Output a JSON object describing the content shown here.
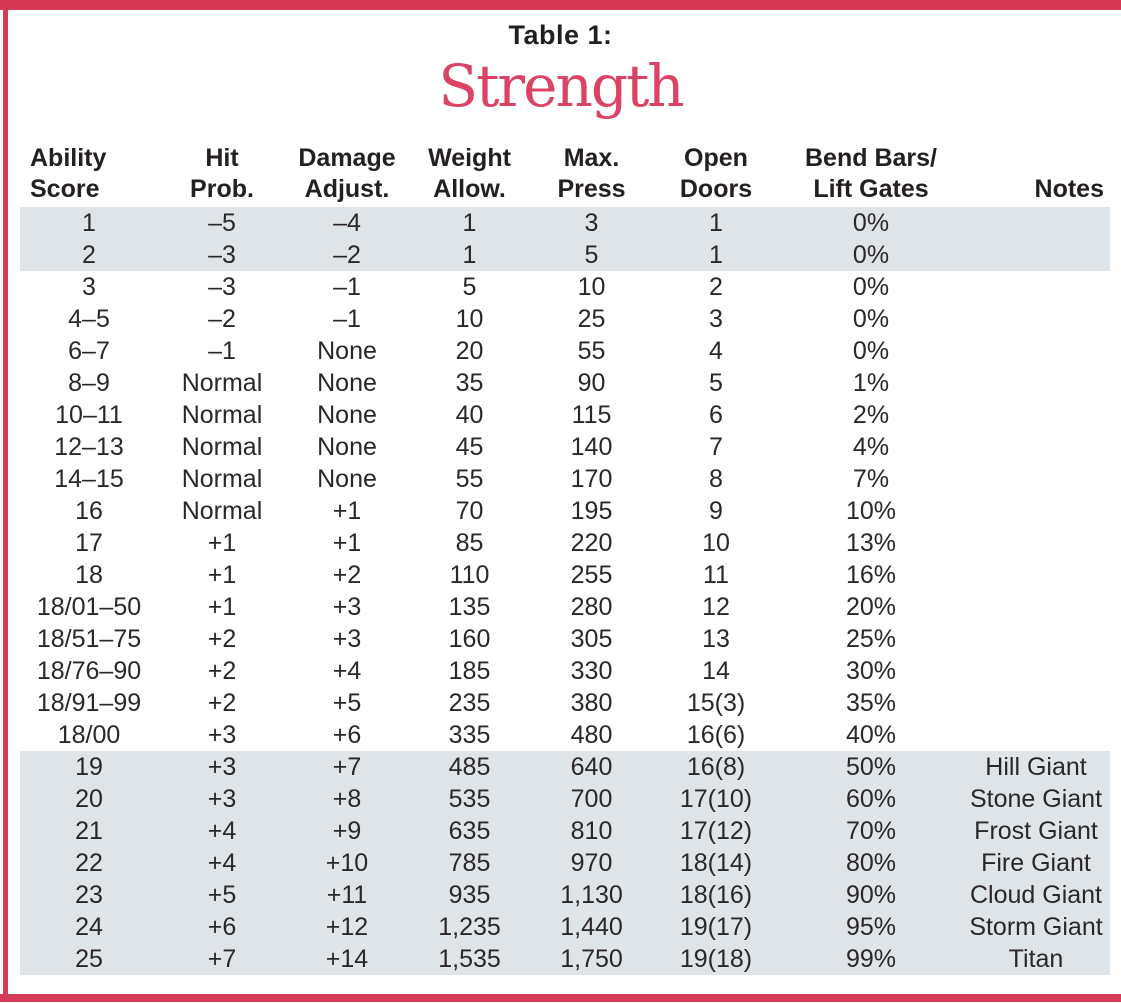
{
  "page": {
    "title_line1": "Table 1:",
    "title_line2": "Strength"
  },
  "colors": {
    "frame_red": "#d53a58",
    "title_red": "#dc4264",
    "row_shade": "#dfe4e8",
    "text": "#272326"
  },
  "table": {
    "headers": [
      {
        "id": "ability-score",
        "line1": "Ability",
        "line2": "Score"
      },
      {
        "id": "hit-prob",
        "line1": "Hit",
        "line2": "Prob."
      },
      {
        "id": "damage-adjust",
        "line1": "Damage",
        "line2": "Adjust."
      },
      {
        "id": "weight-allow",
        "line1": "Weight",
        "line2": "Allow."
      },
      {
        "id": "max-press",
        "line1": "Max.",
        "line2": "Press"
      },
      {
        "id": "open-doors",
        "line1": "Open",
        "line2": "Doors"
      },
      {
        "id": "bend-bars",
        "line1": "Bend Bars/",
        "line2": "Lift Gates"
      },
      {
        "id": "notes",
        "line1": "",
        "line2": "Notes"
      }
    ],
    "rows": [
      {
        "shaded": true,
        "cells": [
          "1",
          "–5",
          "–4",
          "1",
          "3",
          "1",
          "0%",
          ""
        ]
      },
      {
        "shaded": true,
        "cells": [
          "2",
          "–3",
          "–2",
          "1",
          "5",
          "1",
          "0%",
          ""
        ]
      },
      {
        "shaded": false,
        "cells": [
          "3",
          "–3",
          "–1",
          "5",
          "10",
          "2",
          "0%",
          ""
        ]
      },
      {
        "shaded": false,
        "cells": [
          "4–5",
          "–2",
          "–1",
          "10",
          "25",
          "3",
          "0%",
          ""
        ]
      },
      {
        "shaded": false,
        "cells": [
          "6–7",
          "–1",
          "None",
          "20",
          "55",
          "4",
          "0%",
          ""
        ]
      },
      {
        "shaded": false,
        "cells": [
          "8–9",
          "Normal",
          "None",
          "35",
          "90",
          "5",
          "1%",
          ""
        ]
      },
      {
        "shaded": false,
        "cells": [
          "10–11",
          "Normal",
          "None",
          "40",
          "115",
          "6",
          "2%",
          ""
        ]
      },
      {
        "shaded": false,
        "cells": [
          "12–13",
          "Normal",
          "None",
          "45",
          "140",
          "7",
          "4%",
          ""
        ]
      },
      {
        "shaded": false,
        "cells": [
          "14–15",
          "Normal",
          "None",
          "55",
          "170",
          "8",
          "7%",
          ""
        ]
      },
      {
        "shaded": false,
        "cells": [
          "16",
          "Normal",
          "+1",
          "70",
          "195",
          "9",
          "10%",
          ""
        ]
      },
      {
        "shaded": false,
        "cells": [
          "17",
          "+1",
          "+1",
          "85",
          "220",
          "10",
          "13%",
          ""
        ]
      },
      {
        "shaded": false,
        "cells": [
          "18",
          "+1",
          "+2",
          "110",
          "255",
          "11",
          "16%",
          ""
        ]
      },
      {
        "shaded": false,
        "cells": [
          "18/01–50",
          "+1",
          "+3",
          "135",
          "280",
          "12",
          "20%",
          ""
        ]
      },
      {
        "shaded": false,
        "cells": [
          "18/51–75",
          "+2",
          "+3",
          "160",
          "305",
          "13",
          "25%",
          ""
        ]
      },
      {
        "shaded": false,
        "cells": [
          "18/76–90",
          "+2",
          "+4",
          "185",
          "330",
          "14",
          "30%",
          ""
        ]
      },
      {
        "shaded": false,
        "cells": [
          "18/91–99",
          "+2",
          "+5",
          "235",
          "380",
          "15(3)",
          "35%",
          ""
        ]
      },
      {
        "shaded": false,
        "cells": [
          "18/00",
          "+3",
          "+6",
          "335",
          "480",
          "16(6)",
          "40%",
          ""
        ]
      },
      {
        "shaded": true,
        "cells": [
          "19",
          "+3",
          "+7",
          "485",
          "640",
          "16(8)",
          "50%",
          "Hill Giant"
        ]
      },
      {
        "shaded": true,
        "cells": [
          "20",
          "+3",
          "+8",
          "535",
          "700",
          "17(10)",
          "60%",
          "Stone Giant"
        ]
      },
      {
        "shaded": true,
        "cells": [
          "21",
          "+4",
          "+9",
          "635",
          "810",
          "17(12)",
          "70%",
          "Frost Giant"
        ]
      },
      {
        "shaded": true,
        "cells": [
          "22",
          "+4",
          "+10",
          "785",
          "970",
          "18(14)",
          "80%",
          "Fire Giant"
        ]
      },
      {
        "shaded": true,
        "cells": [
          "23",
          "+5",
          "+11",
          "935",
          "1,130",
          "18(16)",
          "90%",
          "Cloud Giant"
        ]
      },
      {
        "shaded": true,
        "cells": [
          "24",
          "+6",
          "+12",
          "1,235",
          "1,440",
          "19(17)",
          "95%",
          "Storm Giant"
        ]
      },
      {
        "shaded": true,
        "cells": [
          "25",
          "+7",
          "+14",
          "1,535",
          "1,750",
          "19(18)",
          "99%",
          "Titan"
        ]
      }
    ]
  }
}
